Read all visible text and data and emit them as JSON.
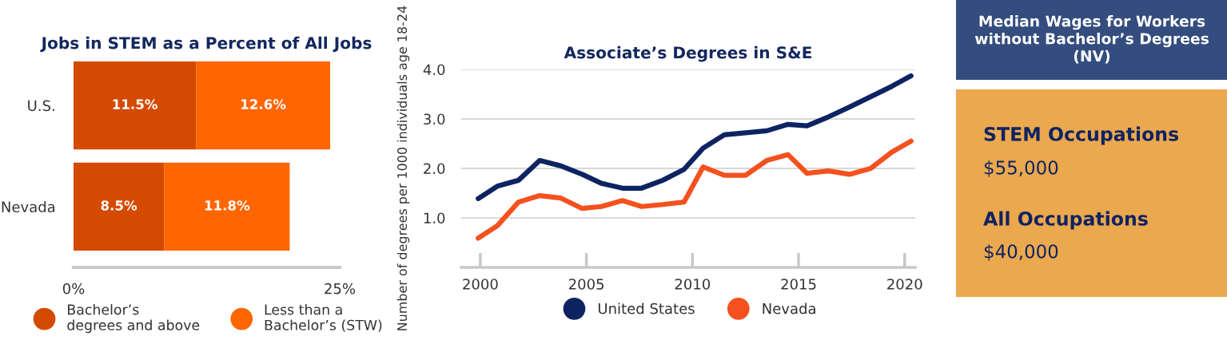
{
  "chart_data": [
    {
      "type": "bar",
      "orientation": "horizontal",
      "stacked": true,
      "title": "Jobs in STEM as a Percent of All Jobs",
      "categories": [
        "U.S.",
        "Nevada"
      ],
      "series": [
        {
          "name": "Bachelor’s degrees and above",
          "color": "#d44a00",
          "values": [
            11.5,
            8.5
          ],
          "value_labels": [
            "11.5%",
            "8.5%"
          ]
        },
        {
          "name": "Less than a Bachelor’s (STW)",
          "color": "#ff6600",
          "values": [
            12.6,
            11.8
          ],
          "value_labels": [
            "12.6%",
            "11.8%"
          ]
        }
      ],
      "xlim": [
        0,
        25
      ],
      "xticks": [
        {
          "value": 0,
          "label": "0%"
        },
        {
          "value": 25,
          "label": "25%"
        }
      ],
      "legend": "bottom"
    },
    {
      "type": "line",
      "title": "Associate’s Degrees in S&E",
      "ylabel": "Number of degrees per 1000 individuals age 18-24",
      "x": [
        1999.9,
        2000.8,
        2001.8,
        2002.8,
        2003.8,
        2004.8,
        2005.7,
        2006.7,
        2007.6,
        2008.6,
        2009.6,
        2010.5,
        2011.5,
        2012.5,
        2013.5,
        2014.5,
        2015.4,
        2016.4,
        2017.4,
        2018.4,
        2019.4,
        2020.3
      ],
      "series": [
        {
          "name": "United States",
          "color": "#0e2361",
          "values": [
            1.39,
            1.64,
            1.76,
            2.16,
            2.05,
            1.88,
            1.7,
            1.6,
            1.6,
            1.76,
            1.98,
            2.41,
            2.68,
            2.72,
            2.76,
            2.89,
            2.86,
            3.04,
            3.24,
            3.45,
            3.66,
            3.87
          ]
        },
        {
          "name": "Nevada",
          "color": "#f4511e",
          "values": [
            0.59,
            0.84,
            1.32,
            1.45,
            1.4,
            1.19,
            1.23,
            1.35,
            1.23,
            1.27,
            1.32,
            2.03,
            1.86,
            1.86,
            2.16,
            2.28,
            1.9,
            1.95,
            1.88,
            2.0,
            2.33,
            2.55
          ]
        }
      ],
      "xlim": [
        1999.1,
        2020.5
      ],
      "xticks": [
        2000,
        2005,
        2010,
        2015,
        2020
      ],
      "ylim": [
        0,
        4.0
      ],
      "yticks": [
        {
          "value": 1,
          "label": "1.0"
        },
        {
          "value": 2,
          "label": "2.0"
        },
        {
          "value": 3,
          "label": "3.0"
        },
        {
          "value": 4,
          "label": "4.0"
        }
      ],
      "grid": "y",
      "legend": "bottom"
    },
    {
      "type": "other",
      "title": "Median Wages for Workers without Bachelor’s Degrees (NV)",
      "annotations": [
        "STEM Occupations",
        "$55,000",
        "All Occupations",
        "$40,000"
      ]
    }
  ]
}
